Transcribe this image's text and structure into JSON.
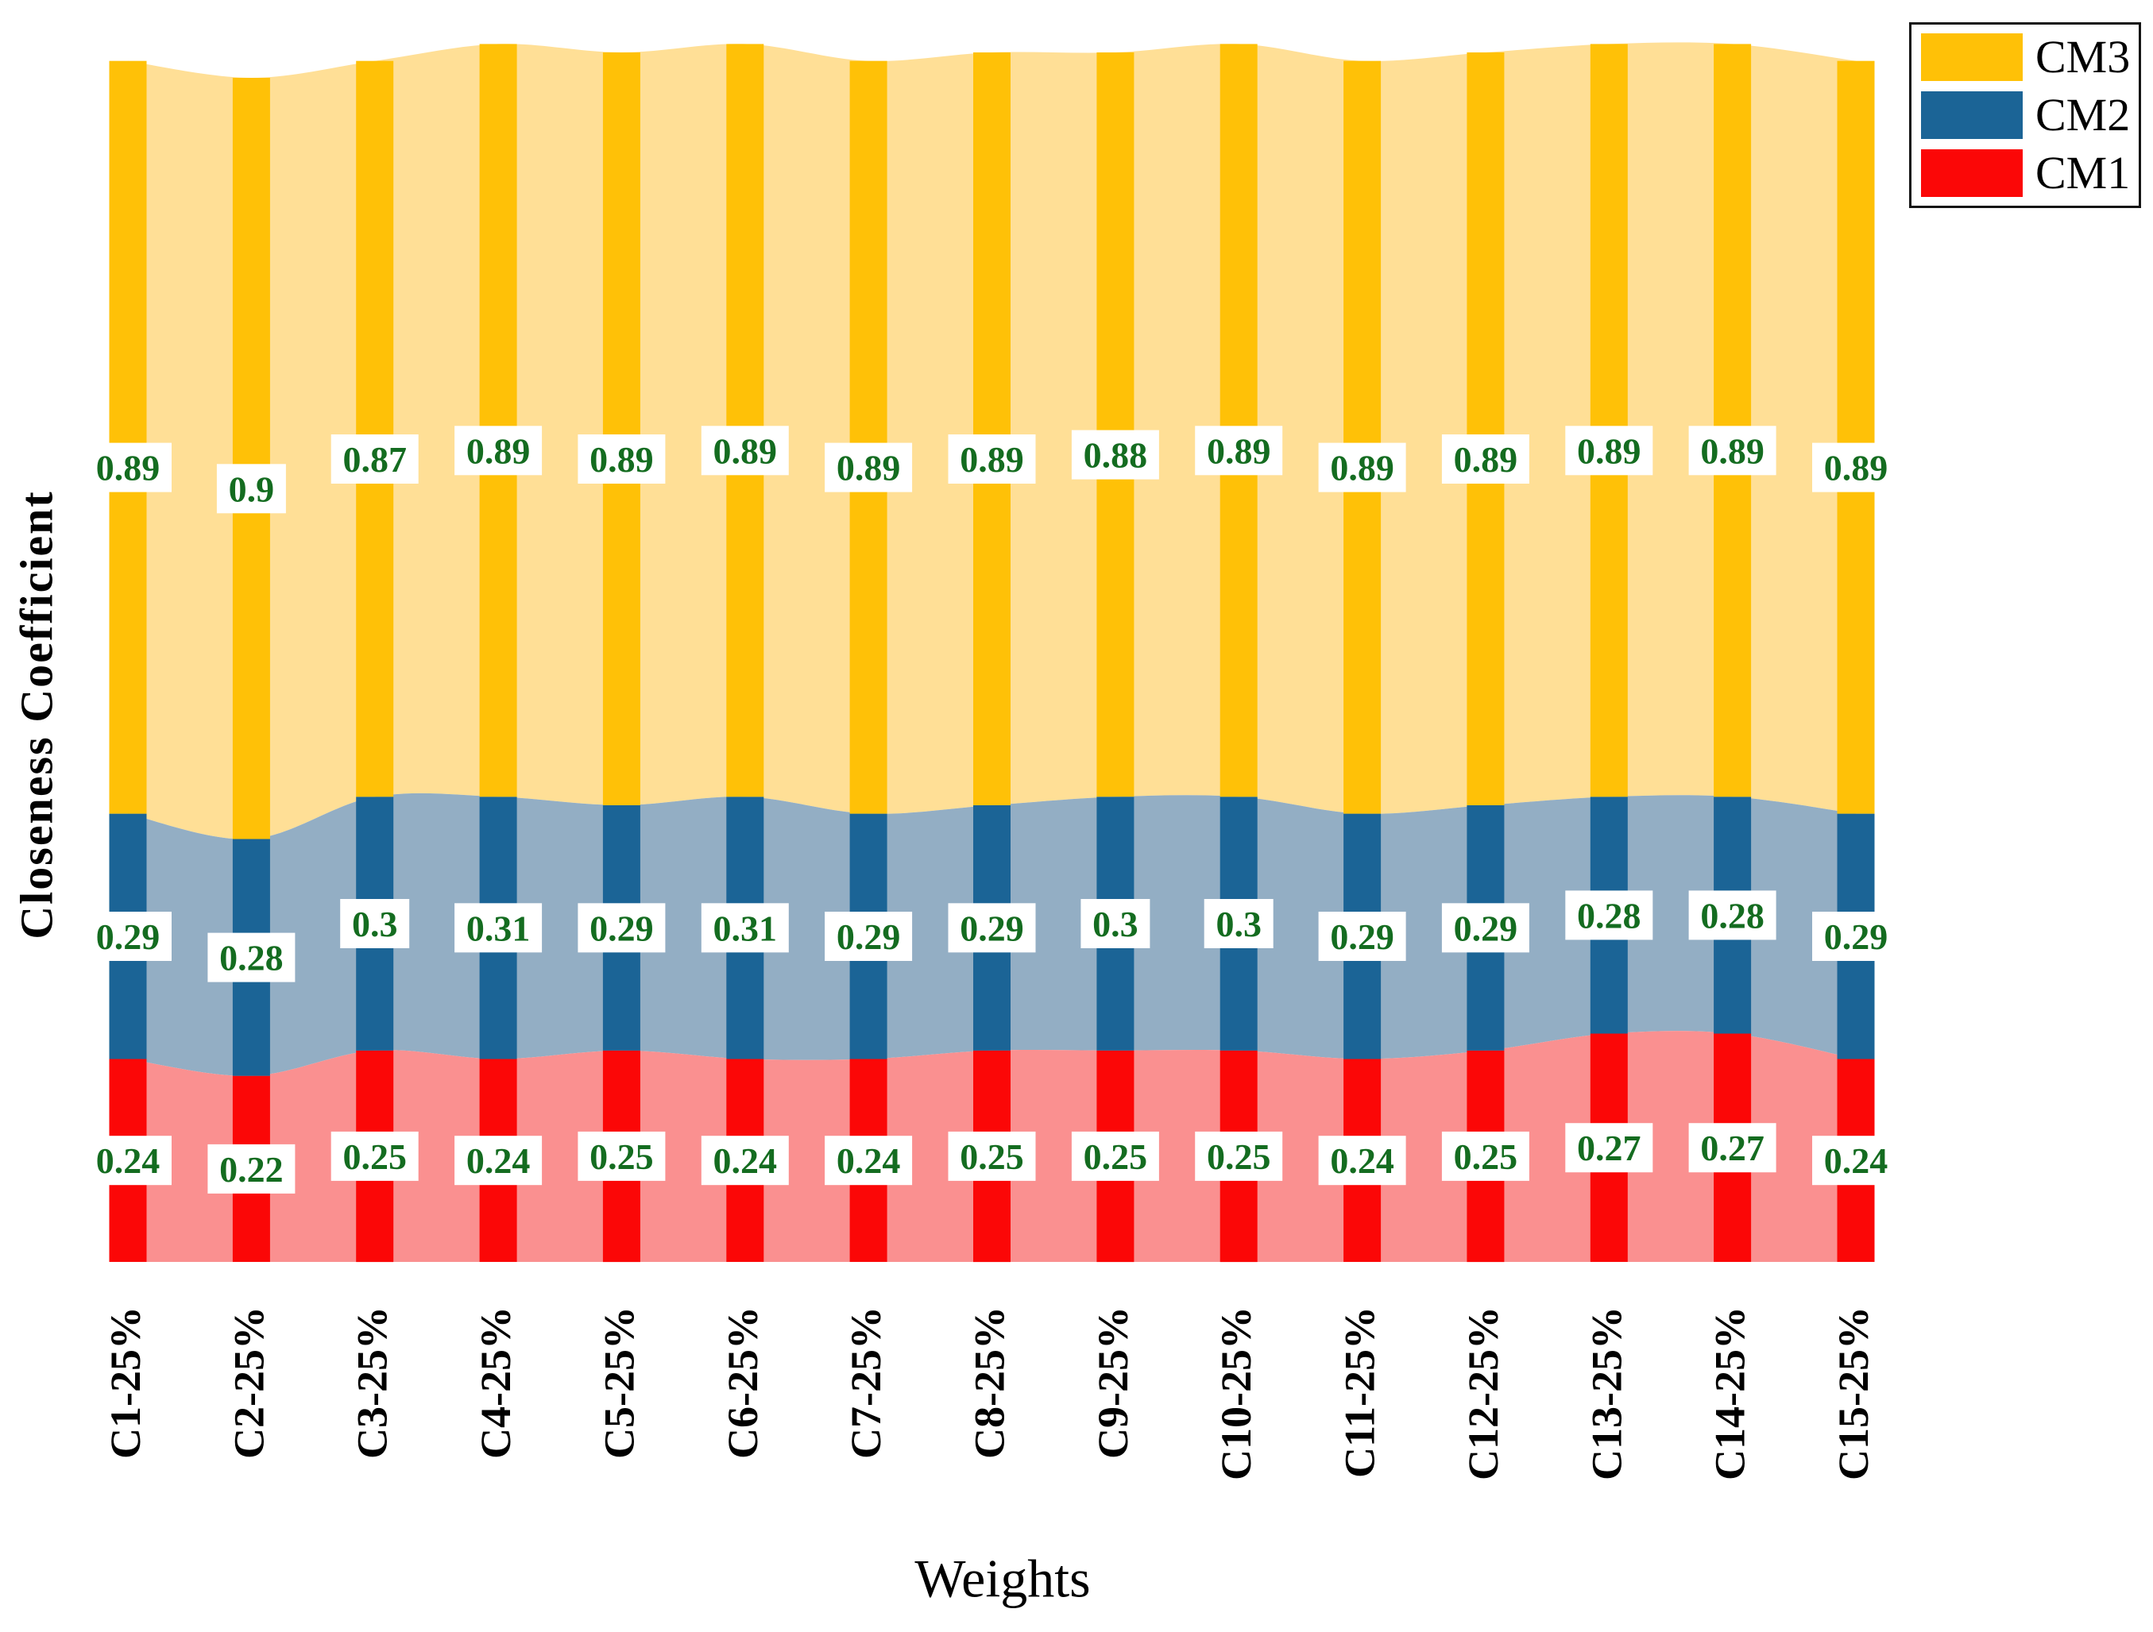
{
  "chart_data": {
    "type": "bar",
    "variant": "stacked-bars-with-smoothed-area-bands",
    "title": "",
    "xlabel": "Weights",
    "ylabel": "Closeness Coefficient",
    "categories": [
      "C1-25%",
      "C2-25%",
      "C3-25%",
      "C4-25%",
      "C5-25%",
      "C6-25%",
      "C7-25%",
      "C8-25%",
      "C9-25%",
      "C10-25%",
      "C11-25%",
      "C12-25%",
      "C13-25%",
      "C14-25%",
      "C15-25%"
    ],
    "series": [
      {
        "name": "CM1",
        "bar_color": "#FB0707",
        "area_color": "#FA9090",
        "values": [
          0.24,
          0.22,
          0.25,
          0.24,
          0.25,
          0.24,
          0.24,
          0.25,
          0.25,
          0.25,
          0.24,
          0.25,
          0.27,
          0.27,
          0.24
        ]
      },
      {
        "name": "CM2",
        "bar_color": "#1B6496",
        "area_color": "#93AEC4",
        "values": [
          0.29,
          0.28,
          0.3,
          0.31,
          0.29,
          0.31,
          0.29,
          0.29,
          0.3,
          0.3,
          0.29,
          0.29,
          0.28,
          0.28,
          0.29
        ]
      },
      {
        "name": "CM3",
        "bar_color": "#FFC107",
        "area_color": "#FFDF96",
        "values": [
          0.89,
          0.9,
          0.87,
          0.89,
          0.89,
          0.89,
          0.89,
          0.89,
          0.88,
          0.89,
          0.89,
          0.89,
          0.89,
          0.89,
          0.89
        ]
      }
    ],
    "stacked": true,
    "grid": false,
    "ylim": [
      0,
      1.44
    ],
    "value_labels": true,
    "value_label_color": "#146C20",
    "value_label_bg": "#FFFFFF",
    "legend_position": "top-right",
    "legend_order": [
      "CM3",
      "CM2",
      "CM1"
    ]
  }
}
